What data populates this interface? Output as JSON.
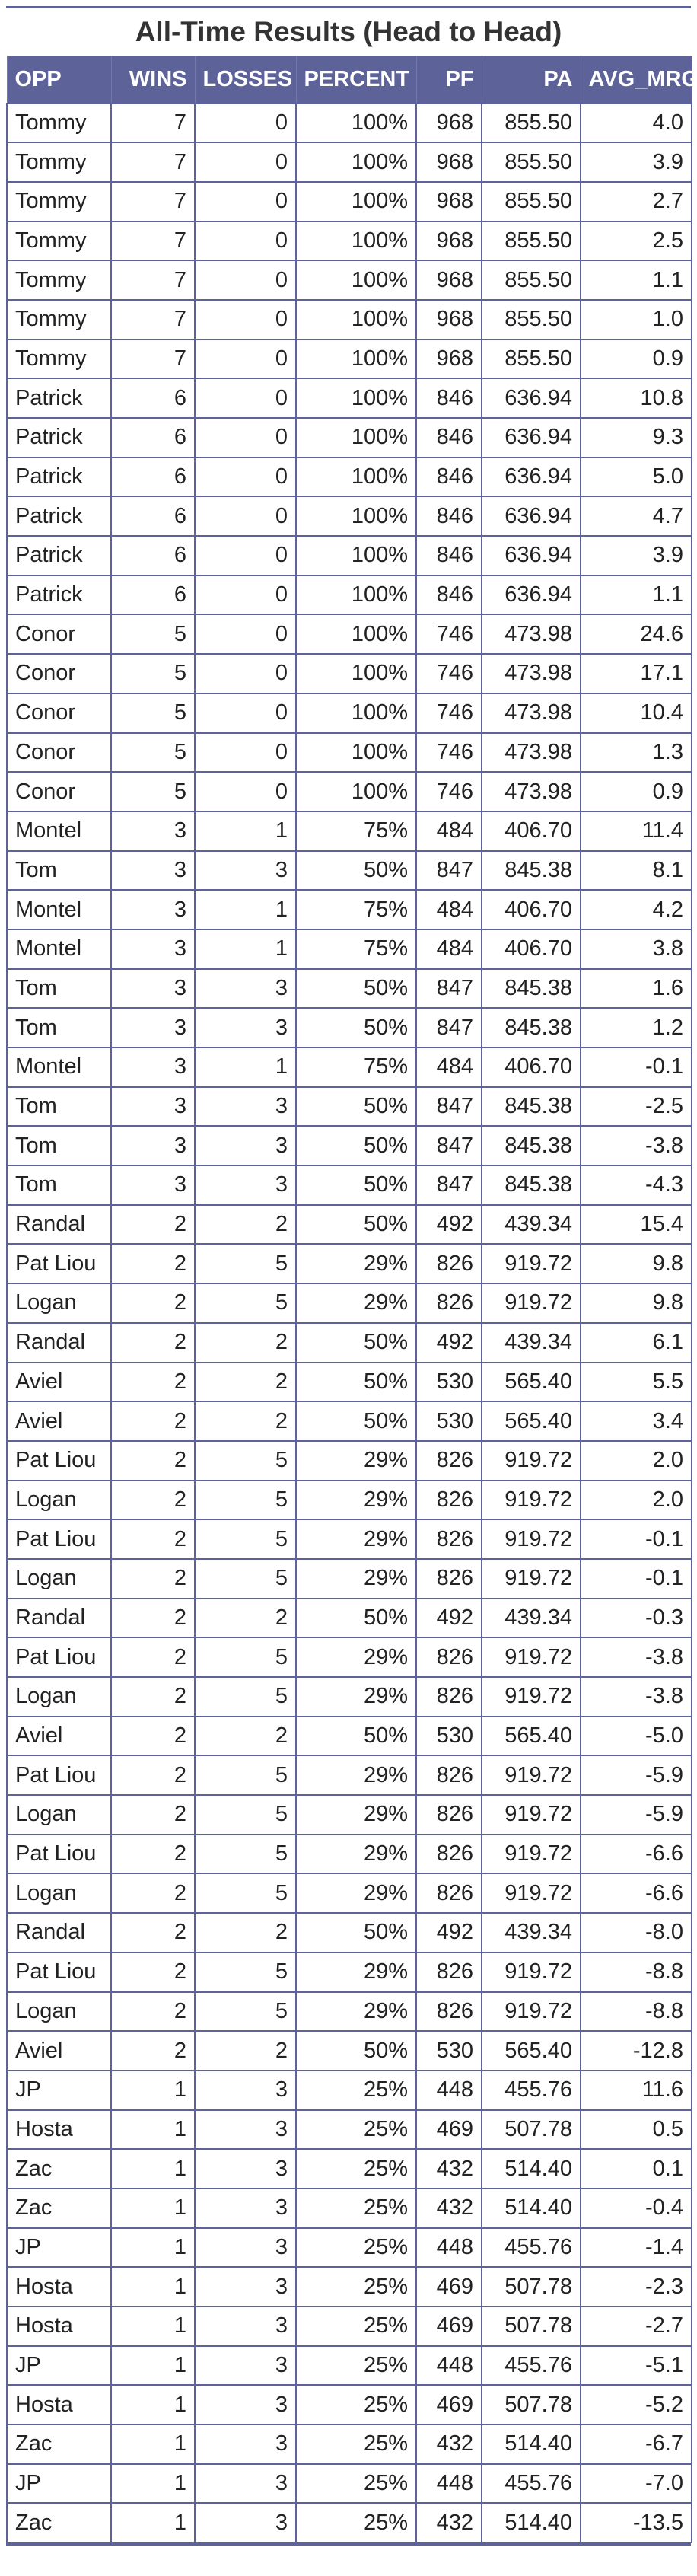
{
  "title": "All-Time Results (Head to Head)",
  "accent_color": "#5d6299",
  "columns": [
    "OPP",
    "WINS",
    "LOSSES",
    "PERCENT",
    "PF",
    "PA",
    "AVG_MRG"
  ],
  "rows": [
    [
      "Tommy",
      "7",
      "0",
      "100%",
      "968",
      "855.50",
      "4.0"
    ],
    [
      "Tommy",
      "7",
      "0",
      "100%",
      "968",
      "855.50",
      "3.9"
    ],
    [
      "Tommy",
      "7",
      "0",
      "100%",
      "968",
      "855.50",
      "2.7"
    ],
    [
      "Tommy",
      "7",
      "0",
      "100%",
      "968",
      "855.50",
      "2.5"
    ],
    [
      "Tommy",
      "7",
      "0",
      "100%",
      "968",
      "855.50",
      "1.1"
    ],
    [
      "Tommy",
      "7",
      "0",
      "100%",
      "968",
      "855.50",
      "1.0"
    ],
    [
      "Tommy",
      "7",
      "0",
      "100%",
      "968",
      "855.50",
      "0.9"
    ],
    [
      "Patrick",
      "6",
      "0",
      "100%",
      "846",
      "636.94",
      "10.8"
    ],
    [
      "Patrick",
      "6",
      "0",
      "100%",
      "846",
      "636.94",
      "9.3"
    ],
    [
      "Patrick",
      "6",
      "0",
      "100%",
      "846",
      "636.94",
      "5.0"
    ],
    [
      "Patrick",
      "6",
      "0",
      "100%",
      "846",
      "636.94",
      "4.7"
    ],
    [
      "Patrick",
      "6",
      "0",
      "100%",
      "846",
      "636.94",
      "3.9"
    ],
    [
      "Patrick",
      "6",
      "0",
      "100%",
      "846",
      "636.94",
      "1.1"
    ],
    [
      "Conor",
      "5",
      "0",
      "100%",
      "746",
      "473.98",
      "24.6"
    ],
    [
      "Conor",
      "5",
      "0",
      "100%",
      "746",
      "473.98",
      "17.1"
    ],
    [
      "Conor",
      "5",
      "0",
      "100%",
      "746",
      "473.98",
      "10.4"
    ],
    [
      "Conor",
      "5",
      "0",
      "100%",
      "746",
      "473.98",
      "1.3"
    ],
    [
      "Conor",
      "5",
      "0",
      "100%",
      "746",
      "473.98",
      "0.9"
    ],
    [
      "Montel",
      "3",
      "1",
      "75%",
      "484",
      "406.70",
      "11.4"
    ],
    [
      "Tom",
      "3",
      "3",
      "50%",
      "847",
      "845.38",
      "8.1"
    ],
    [
      "Montel",
      "3",
      "1",
      "75%",
      "484",
      "406.70",
      "4.2"
    ],
    [
      "Montel",
      "3",
      "1",
      "75%",
      "484",
      "406.70",
      "3.8"
    ],
    [
      "Tom",
      "3",
      "3",
      "50%",
      "847",
      "845.38",
      "1.6"
    ],
    [
      "Tom",
      "3",
      "3",
      "50%",
      "847",
      "845.38",
      "1.2"
    ],
    [
      "Montel",
      "3",
      "1",
      "75%",
      "484",
      "406.70",
      "-0.1"
    ],
    [
      "Tom",
      "3",
      "3",
      "50%",
      "847",
      "845.38",
      "-2.5"
    ],
    [
      "Tom",
      "3",
      "3",
      "50%",
      "847",
      "845.38",
      "-3.8"
    ],
    [
      "Tom",
      "3",
      "3",
      "50%",
      "847",
      "845.38",
      "-4.3"
    ],
    [
      "Randal",
      "2",
      "2",
      "50%",
      "492",
      "439.34",
      "15.4"
    ],
    [
      "Pat Liou",
      "2",
      "5",
      "29%",
      "826",
      "919.72",
      "9.8"
    ],
    [
      "Logan",
      "2",
      "5",
      "29%",
      "826",
      "919.72",
      "9.8"
    ],
    [
      "Randal",
      "2",
      "2",
      "50%",
      "492",
      "439.34",
      "6.1"
    ],
    [
      "Aviel",
      "2",
      "2",
      "50%",
      "530",
      "565.40",
      "5.5"
    ],
    [
      "Aviel",
      "2",
      "2",
      "50%",
      "530",
      "565.40",
      "3.4"
    ],
    [
      "Pat Liou",
      "2",
      "5",
      "29%",
      "826",
      "919.72",
      "2.0"
    ],
    [
      "Logan",
      "2",
      "5",
      "29%",
      "826",
      "919.72",
      "2.0"
    ],
    [
      "Pat Liou",
      "2",
      "5",
      "29%",
      "826",
      "919.72",
      "-0.1"
    ],
    [
      "Logan",
      "2",
      "5",
      "29%",
      "826",
      "919.72",
      "-0.1"
    ],
    [
      "Randal",
      "2",
      "2",
      "50%",
      "492",
      "439.34",
      "-0.3"
    ],
    [
      "Pat Liou",
      "2",
      "5",
      "29%",
      "826",
      "919.72",
      "-3.8"
    ],
    [
      "Logan",
      "2",
      "5",
      "29%",
      "826",
      "919.72",
      "-3.8"
    ],
    [
      "Aviel",
      "2",
      "2",
      "50%",
      "530",
      "565.40",
      "-5.0"
    ],
    [
      "Pat Liou",
      "2",
      "5",
      "29%",
      "826",
      "919.72",
      "-5.9"
    ],
    [
      "Logan",
      "2",
      "5",
      "29%",
      "826",
      "919.72",
      "-5.9"
    ],
    [
      "Pat Liou",
      "2",
      "5",
      "29%",
      "826",
      "919.72",
      "-6.6"
    ],
    [
      "Logan",
      "2",
      "5",
      "29%",
      "826",
      "919.72",
      "-6.6"
    ],
    [
      "Randal",
      "2",
      "2",
      "50%",
      "492",
      "439.34",
      "-8.0"
    ],
    [
      "Pat Liou",
      "2",
      "5",
      "29%",
      "826",
      "919.72",
      "-8.8"
    ],
    [
      "Logan",
      "2",
      "5",
      "29%",
      "826",
      "919.72",
      "-8.8"
    ],
    [
      "Aviel",
      "2",
      "2",
      "50%",
      "530",
      "565.40",
      "-12.8"
    ],
    [
      "JP",
      "1",
      "3",
      "25%",
      "448",
      "455.76",
      "11.6"
    ],
    [
      "Hosta",
      "1",
      "3",
      "25%",
      "469",
      "507.78",
      "0.5"
    ],
    [
      "Zac",
      "1",
      "3",
      "25%",
      "432",
      "514.40",
      "0.1"
    ],
    [
      "Zac",
      "1",
      "3",
      "25%",
      "432",
      "514.40",
      "-0.4"
    ],
    [
      "JP",
      "1",
      "3",
      "25%",
      "448",
      "455.76",
      "-1.4"
    ],
    [
      "Hosta",
      "1",
      "3",
      "25%",
      "469",
      "507.78",
      "-2.3"
    ],
    [
      "Hosta",
      "1",
      "3",
      "25%",
      "469",
      "507.78",
      "-2.7"
    ],
    [
      "JP",
      "1",
      "3",
      "25%",
      "448",
      "455.76",
      "-5.1"
    ],
    [
      "Hosta",
      "1",
      "3",
      "25%",
      "469",
      "507.78",
      "-5.2"
    ],
    [
      "Zac",
      "1",
      "3",
      "25%",
      "432",
      "514.40",
      "-6.7"
    ],
    [
      "JP",
      "1",
      "3",
      "25%",
      "448",
      "455.76",
      "-7.0"
    ],
    [
      "Zac",
      "1",
      "3",
      "25%",
      "432",
      "514.40",
      "-13.5"
    ]
  ]
}
